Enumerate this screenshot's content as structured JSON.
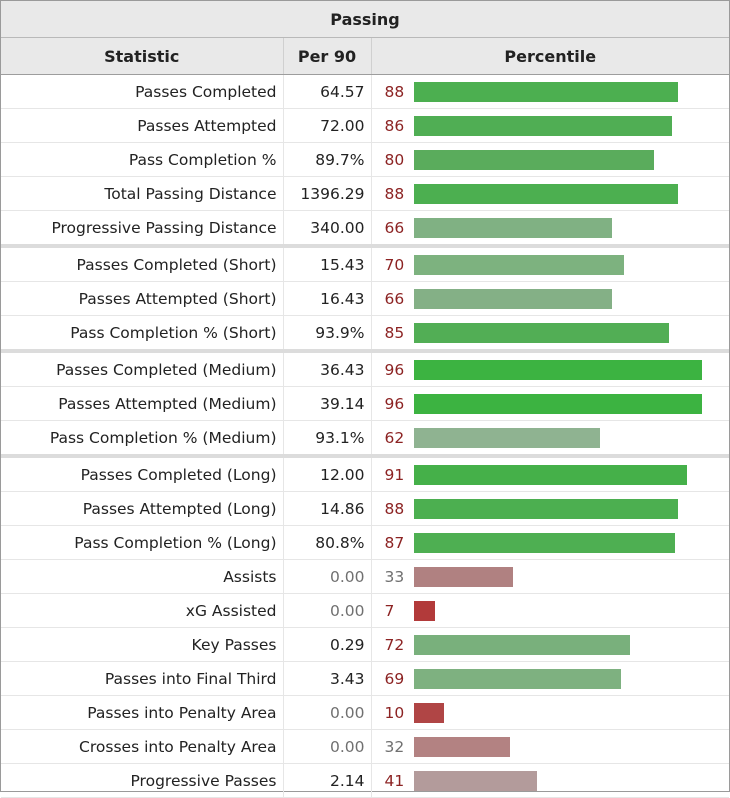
{
  "title": "Passing",
  "columns": {
    "statistic": "Statistic",
    "per90": "Per 90",
    "percentile": "Percentile"
  },
  "rows": [
    {
      "label": "Passes Completed",
      "per90": "64.57",
      "percentile": 88,
      "bar_color": "#4caf50",
      "group_end": false
    },
    {
      "label": "Passes Attempted",
      "per90": "72.00",
      "percentile": 86,
      "bar_color": "#50ae54",
      "group_end": false
    },
    {
      "label": "Pass Completion %",
      "per90": "89.7%",
      "percentile": 80,
      "bar_color": "#5aac5c",
      "group_end": false
    },
    {
      "label": "Total Passing Distance",
      "per90": "1396.29",
      "percentile": 88,
      "bar_color": "#4caf50",
      "group_end": false
    },
    {
      "label": "Progressive Passing Distance",
      "per90": "340.00",
      "percentile": 66,
      "bar_color": "#80b183",
      "group_end": true
    },
    {
      "label": "Passes Completed (Short)",
      "per90": "15.43",
      "percentile": 70,
      "bar_color": "#7db27f",
      "group_end": false
    },
    {
      "label": "Passes Attempted (Short)",
      "per90": "16.43",
      "percentile": 66,
      "bar_color": "#84b086",
      "group_end": false
    },
    {
      "label": "Pass Completion % (Short)",
      "per90": "93.9%",
      "percentile": 85,
      "bar_color": "#52ae55",
      "group_end": true
    },
    {
      "label": "Passes Completed (Medium)",
      "per90": "36.43",
      "percentile": 96,
      "bar_color": "#3cb341",
      "group_end": false
    },
    {
      "label": "Passes Attempted (Medium)",
      "per90": "39.14",
      "percentile": 96,
      "bar_color": "#3cb341",
      "group_end": false
    },
    {
      "label": "Pass Completion % (Medium)",
      "per90": "93.1%",
      "percentile": 62,
      "bar_color": "#8fb391",
      "group_end": true
    },
    {
      "label": "Passes Completed (Long)",
      "per90": "12.00",
      "percentile": 91,
      "bar_color": "#45b049",
      "group_end": false
    },
    {
      "label": "Passes Attempted (Long)",
      "per90": "14.86",
      "percentile": 88,
      "bar_color": "#4caf50",
      "group_end": false
    },
    {
      "label": "Pass Completion % (Long)",
      "per90": "80.8%",
      "percentile": 87,
      "bar_color": "#4eaf52",
      "group_end": false
    },
    {
      "label": "Assists",
      "per90": "0.00",
      "percentile": 33,
      "bar_color": "#b08181",
      "group_end": false
    },
    {
      "label": "xG Assisted",
      "per90": "0.00",
      "percentile": 7,
      "bar_color": "#b23a3a",
      "group_end": false
    },
    {
      "label": "Key Passes",
      "per90": "0.29",
      "percentile": 72,
      "bar_color": "#79b07c",
      "group_end": false
    },
    {
      "label": "Passes into Final Third",
      "per90": "3.43",
      "percentile": 69,
      "bar_color": "#7eb180",
      "group_end": false
    },
    {
      "label": "Passes into Penalty Area",
      "per90": "0.00",
      "percentile": 10,
      "bar_color": "#b04545",
      "group_end": false
    },
    {
      "label": "Crosses into Penalty Area",
      "per90": "0.00",
      "percentile": 32,
      "bar_color": "#b38282",
      "group_end": false
    },
    {
      "label": "Progressive Passes",
      "per90": "2.14",
      "percentile": 41,
      "bar_color": "#b39b9b",
      "group_end": false
    }
  ]
}
